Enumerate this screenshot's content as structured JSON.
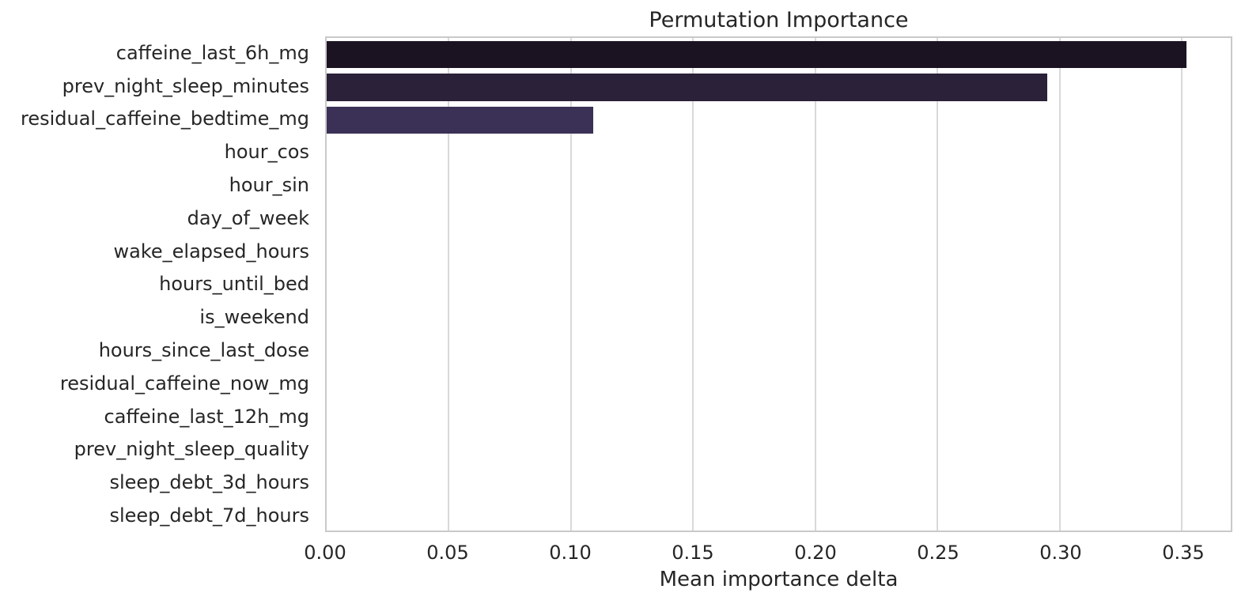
{
  "chart_data": {
    "type": "bar",
    "orientation": "horizontal",
    "title": "Permutation Importance",
    "xlabel": "Mean importance delta",
    "ylabel": "",
    "categories": [
      "caffeine_last_6h_mg",
      "prev_night_sleep_minutes",
      "residual_caffeine_bedtime_mg",
      "hour_cos",
      "hour_sin",
      "day_of_week",
      "wake_elapsed_hours",
      "hours_until_bed",
      "is_weekend",
      "hours_since_last_dose",
      "residual_caffeine_now_mg",
      "caffeine_last_12h_mg",
      "prev_night_sleep_quality",
      "sleep_debt_3d_hours",
      "sleep_debt_7d_hours"
    ],
    "values": [
      0.352,
      0.295,
      0.109,
      0,
      0,
      0,
      0,
      0,
      0,
      0,
      0,
      0,
      0,
      0,
      0
    ],
    "bar_colors": [
      "#1c1322",
      "#2b2139",
      "#3b3156",
      "#3b3156",
      "#3b3156",
      "#3b3156",
      "#3b3156",
      "#3b3156",
      "#3b3156",
      "#3b3156",
      "#3b3156",
      "#3b3156",
      "#3b3156",
      "#3b3156",
      "#3b3156"
    ],
    "xlim": [
      0,
      0.37
    ],
    "xticks": [
      0.0,
      0.05,
      0.1,
      0.15,
      0.2,
      0.25,
      0.3,
      0.35
    ],
    "xtick_labels": [
      "0.00",
      "0.05",
      "0.10",
      "0.15",
      "0.20",
      "0.25",
      "0.30",
      "0.35"
    ],
    "grid": true,
    "legend": false,
    "style": {
      "grid_color": "#d9d9d9",
      "spine_color": "#c9c9c9",
      "text_color": "#262626",
      "background_color": "#ffffff"
    }
  }
}
